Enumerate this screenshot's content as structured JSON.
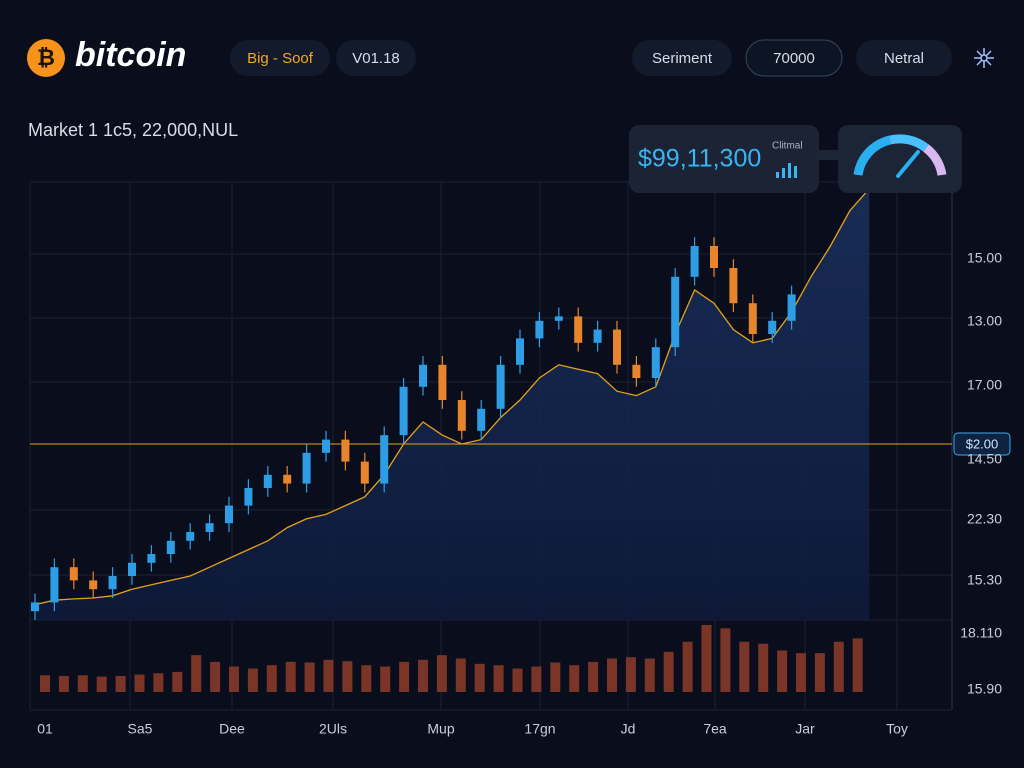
{
  "header": {
    "logo": "bitcoin",
    "pair": "Big - Soof",
    "version": "V01.18",
    "sentiment_label": "Seriment",
    "sentiment_value": "70000",
    "sentiment_state": "Netral"
  },
  "market_label": "Market  1 1c5, 22,000,NUL",
  "price_card": {
    "price": "$99,11,300",
    "caption": "Clitmal"
  },
  "chart_data": {
    "type": "candlestick",
    "ylim": [
      0,
      100
    ],
    "up_color": "#2d9ee6",
    "down_color": "#e8842c",
    "candles": {
      "open": [
        2,
        4,
        12,
        9,
        7,
        10,
        13,
        15,
        18,
        20,
        22,
        26,
        30,
        33,
        31,
        38,
        41,
        36,
        31,
        42,
        53,
        58,
        50,
        43,
        48,
        58,
        64,
        68,
        69,
        63,
        66,
        58,
        55,
        62,
        78,
        85,
        80,
        72,
        65,
        68
      ],
      "high": [
        6,
        14,
        14,
        11,
        12,
        15,
        17,
        20,
        22,
        24,
        28,
        32,
        35,
        35,
        40,
        43,
        43,
        38,
        44,
        55,
        60,
        60,
        52,
        50,
        60,
        66,
        70,
        71,
        71,
        68,
        68,
        60,
        64,
        80,
        87,
        87,
        82,
        74,
        70,
        76
      ],
      "low": [
        0,
        2,
        7,
        5,
        5,
        8,
        11,
        13,
        16,
        18,
        20,
        24,
        28,
        29,
        29,
        36,
        34,
        29,
        29,
        40,
        51,
        48,
        41,
        41,
        46,
        56,
        62,
        66,
        61,
        61,
        56,
        53,
        53,
        60,
        76,
        78,
        70,
        63,
        63,
        66
      ],
      "close": [
        4,
        12,
        9,
        7,
        10,
        13,
        15,
        18,
        20,
        22,
        26,
        30,
        33,
        31,
        38,
        41,
        36,
        31,
        42,
        53,
        58,
        50,
        43,
        48,
        58,
        64,
        68,
        69,
        63,
        66,
        58,
        55,
        62,
        78,
        85,
        80,
        72,
        65,
        68,
        74
      ]
    },
    "trend": {
      "color": "#e3a21a",
      "values": [
        3.5,
        4.5,
        4.8,
        5,
        5.5,
        7,
        8,
        9,
        10,
        12,
        14,
        16,
        18,
        21,
        23,
        24,
        26,
        28,
        33,
        40,
        45,
        42,
        40,
        41,
        46,
        50,
        55,
        58,
        57,
        56,
        52,
        51,
        53,
        65,
        75,
        72,
        66,
        63,
        64,
        70,
        78,
        85,
        93,
        98
      ]
    },
    "level": {
      "value": 40,
      "label": "$2.00",
      "color": "#e3a21a"
    },
    "volume": {
      "color": "#7a3526",
      "ylim": [
        0,
        100
      ],
      "values": [
        25,
        24,
        25,
        23,
        24,
        26,
        28,
        30,
        55,
        45,
        38,
        35,
        40,
        45,
        44,
        48,
        46,
        40,
        38,
        45,
        48,
        55,
        50,
        42,
        40,
        35,
        38,
        44,
        40,
        45,
        50,
        52,
        50,
        60,
        75,
        100,
        95,
        75,
        72,
        62,
        58,
        58,
        75,
        80
      ]
    },
    "y_axis_labels": [
      "15.00",
      "13.00",
      "17.00",
      "14.50",
      "22.30",
      "15.30",
      "18.110",
      "15.90"
    ],
    "x_axis_labels": [
      "01",
      "Sa5",
      "Dee",
      "2Uls",
      "Mup",
      "17gn",
      "Jd",
      "7ea",
      "Jar",
      "Toy"
    ],
    "grid": true
  }
}
